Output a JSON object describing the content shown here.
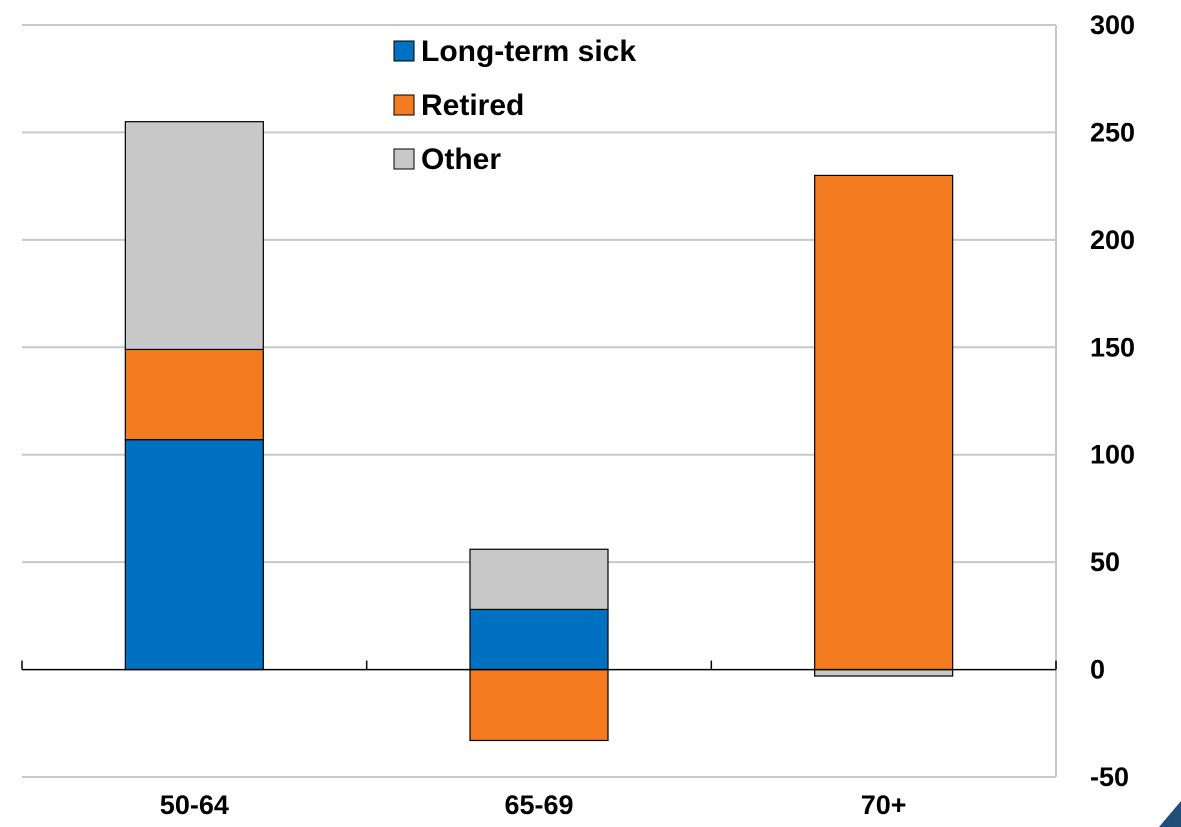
{
  "chart_data": {
    "type": "bar",
    "stacked": true,
    "categories": [
      "50-64",
      "65-69",
      "70+"
    ],
    "series": [
      {
        "name": "Long-term sick",
        "color": "#0070C0",
        "values": [
          107,
          28,
          0
        ]
      },
      {
        "name": "Retired",
        "color": "#F47B20",
        "values": [
          42,
          -33,
          230
        ]
      },
      {
        "name": "Other",
        "color": "#C8C8C8",
        "values": [
          106,
          28,
          -3
        ]
      }
    ],
    "ylim": [
      -50,
      300
    ],
    "yticks": [
      -50,
      0,
      50,
      100,
      150,
      200,
      250,
      300
    ],
    "y_axis_side": "right",
    "grid": true,
    "legend_position": "top-center",
    "title": "",
    "xlabel": "",
    "ylabel": ""
  }
}
